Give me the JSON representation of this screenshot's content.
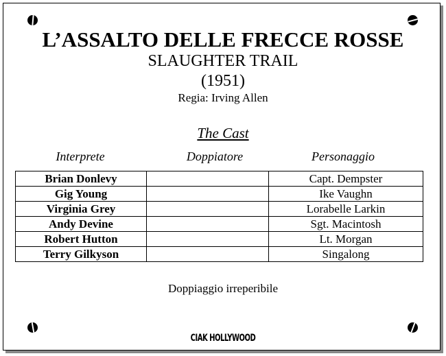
{
  "title": "L’ASSALTO DELLE FRECCE ROSSE",
  "original_title": "SLAUGHTER TRAIL",
  "year": "(1951)",
  "director": "Regia: Irving Allen",
  "cast_heading": "The Cast",
  "columns": [
    "Interprete",
    "Doppiatore",
    "Personaggio"
  ],
  "rows": [
    {
      "actor": "Brian Donlevy",
      "dubber": "",
      "role": "Capt. Dempster"
    },
    {
      "actor": "Gig Young",
      "dubber": "",
      "role": "Ike Vaughn"
    },
    {
      "actor": "Virginia Grey",
      "dubber": "",
      "role": "Lorabelle Larkin"
    },
    {
      "actor": "Andy Devine",
      "dubber": "",
      "role": "Sgt. Macintosh"
    },
    {
      "actor": "Robert Hutton",
      "dubber": "",
      "role": "Lt. Morgan"
    },
    {
      "actor": "Terry Gilkyson",
      "dubber": "",
      "role": "Singalong"
    }
  ],
  "note": "Doppiaggio irreperibile",
  "logo": "CIAK HOLLYWOOD"
}
